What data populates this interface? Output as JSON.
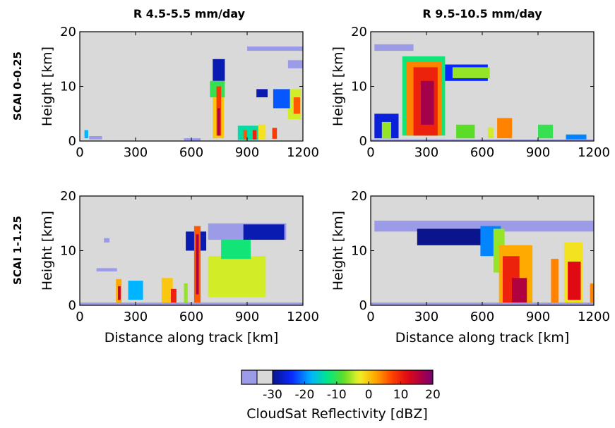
{
  "chart_data": {
    "type": "heatmap",
    "columns": [
      "R 4.5-5.5 mm/day",
      "R 9.5-10.5 mm/day"
    ],
    "rows": [
      "SCAI 0-0.25",
      "SCAI 1-1.25"
    ],
    "xlabel": "Distance along track [km]",
    "ylabel": "Height [km]",
    "xlim": [
      0,
      1200
    ],
    "ylim": [
      0,
      20
    ],
    "xticks": [
      "0",
      "300",
      "600",
      "900",
      "1200"
    ],
    "yticks": [
      "0",
      "10",
      "20"
    ],
    "background_color": "#d9d9d9",
    "colorbar": {
      "label": "CloudSat Reflectivity [dBZ]",
      "ticks": [
        "-30",
        "-20",
        "-10",
        "0",
        "10",
        "20"
      ],
      "tick_values": [
        -30,
        -20,
        -10,
        0,
        10,
        20
      ],
      "range": [
        -40,
        20
      ],
      "under_colors": [
        "#9b9be8",
        "#d9d9d9"
      ]
    },
    "panels": [
      {
        "row": 0,
        "col": 0,
        "cells": [
          {
            "x": [
              25,
              45
            ],
            "y": [
              0.5,
              2
            ],
            "dbz": -18
          },
          {
            "x": [
              50,
              120
            ],
            "y": [
              0.3,
              0.9
            ],
            "dbz": -32
          },
          {
            "x": [
              715,
              780
            ],
            "y": [
              11,
              15
            ],
            "dbz": -28
          },
          {
            "x": [
              700,
              780
            ],
            "y": [
              8,
              11
            ],
            "dbz": -10
          },
          {
            "x": [
              715,
              775
            ],
            "y": [
              0.5,
              8
            ],
            "dbz": 0
          },
          {
            "x": [
              735,
              760
            ],
            "y": [
              1,
              10
            ],
            "dbz": 8
          },
          {
            "x": [
              740,
              755
            ],
            "y": [
              1,
              6
            ],
            "dbz": 16
          },
          {
            "x": [
              560,
              650
            ],
            "y": [
              0.1,
              0.5
            ],
            "dbz": -32
          },
          {
            "x": [
              850,
              960
            ],
            "y": [
              0.2,
              2.8
            ],
            "dbz": -14
          },
          {
            "x": [
              880,
              900
            ],
            "y": [
              0.3,
              2
            ],
            "dbz": 6
          },
          {
            "x": [
              930,
              950
            ],
            "y": [
              0.3,
              2
            ],
            "dbz": 10
          },
          {
            "x": [
              960,
              1000
            ],
            "y": [
              0.3,
              3
            ],
            "dbz": -2
          },
          {
            "x": [
              1035,
              1060
            ],
            "y": [
              0.4,
              2.4
            ],
            "dbz": 8
          },
          {
            "x": [
              1120,
              1190
            ],
            "y": [
              4,
              9.5
            ],
            "dbz": -4
          },
          {
            "x": [
              1150,
              1185
            ],
            "y": [
              5,
              8
            ],
            "dbz": 6
          },
          {
            "x": [
              1040,
              1130
            ],
            "y": [
              6,
              9.5
            ],
            "dbz": -22
          },
          {
            "x": [
              950,
              1010
            ],
            "y": [
              8,
              9.5
            ],
            "dbz": -28
          },
          {
            "x": [
              900,
              1200
            ],
            "y": [
              16.5,
              17.3
            ],
            "dbz": -37
          },
          {
            "x": [
              1120,
              1200
            ],
            "y": [
              13.3,
              14.8
            ],
            "dbz": -37
          }
        ]
      },
      {
        "row": 0,
        "col": 1,
        "cells": [
          {
            "x": [
              20,
              230
            ],
            "y": [
              16.5,
              17.7
            ],
            "dbz": -37
          },
          {
            "x": [
              200,
              630
            ],
            "y": [
              11,
              14
            ],
            "dbz": -24
          },
          {
            "x": [
              440,
              640
            ],
            "y": [
              11.5,
              13.5
            ],
            "dbz": -6
          },
          {
            "x": [
              170,
              400
            ],
            "y": [
              1,
              15.5
            ],
            "dbz": -12
          },
          {
            "x": [
              190,
              380
            ],
            "y": [
              1,
              14.5
            ],
            "dbz": 4
          },
          {
            "x": [
              230,
              360
            ],
            "y": [
              1,
              13.5
            ],
            "dbz": 10
          },
          {
            "x": [
              270,
              340
            ],
            "y": [
              3,
              11
            ],
            "dbz": 17
          },
          {
            "x": [
              20,
              150
            ],
            "y": [
              0.5,
              5
            ],
            "dbz": -26
          },
          {
            "x": [
              60,
              110
            ],
            "y": [
              0.5,
              3.5
            ],
            "dbz": -6
          },
          {
            "x": [
              460,
              560
            ],
            "y": [
              0.5,
              3
            ],
            "dbz": -8
          },
          {
            "x": [
              680,
              760
            ],
            "y": [
              0.5,
              4.2
            ],
            "dbz": 4
          },
          {
            "x": [
              630,
              660
            ],
            "y": [
              0.5,
              2.5
            ],
            "dbz": -4
          },
          {
            "x": [
              900,
              980
            ],
            "y": [
              0.5,
              3
            ],
            "dbz": -10
          },
          {
            "x": [
              1050,
              1160
            ],
            "y": [
              0.3,
              1.2
            ],
            "dbz": -20
          },
          {
            "x": [
              0,
              1200
            ],
            "y": [
              0,
              0.3
            ],
            "dbz": -34
          }
        ]
      },
      {
        "row": 1,
        "col": 0,
        "cells": [
          {
            "x": [
              130,
              160
            ],
            "y": [
              11.5,
              12.3
            ],
            "dbz": -37
          },
          {
            "x": [
              90,
              200
            ],
            "y": [
              6.2,
              6.8
            ],
            "dbz": -37
          },
          {
            "x": [
              195,
              225
            ],
            "y": [
              0.5,
              4.8
            ],
            "dbz": 2
          },
          {
            "x": [
              205,
              220
            ],
            "y": [
              1,
              3.5
            ],
            "dbz": 14
          },
          {
            "x": [
              260,
              340
            ],
            "y": [
              1,
              4.5
            ],
            "dbz": -18
          },
          {
            "x": [
              440,
              500
            ],
            "y": [
              0.5,
              5
            ],
            "dbz": 0
          },
          {
            "x": [
              490,
              520
            ],
            "y": [
              0.5,
              3
            ],
            "dbz": 10
          },
          {
            "x": [
              570,
              680
            ],
            "y": [
              10,
              13.5
            ],
            "dbz": -28
          },
          {
            "x": [
              615,
              650
            ],
            "y": [
              0.5,
              14.5
            ],
            "dbz": 6
          },
          {
            "x": [
              625,
              640
            ],
            "y": [
              2,
              13
            ],
            "dbz": 16
          },
          {
            "x": [
              560,
              580
            ],
            "y": [
              0.5,
              4
            ],
            "dbz": -6
          },
          {
            "x": [
              690,
              1000
            ],
            "y": [
              1.5,
              9
            ],
            "dbz": -4
          },
          {
            "x": [
              760,
              920
            ],
            "y": [
              8.5,
              12
            ],
            "dbz": -12
          },
          {
            "x": [
              690,
              1110
            ],
            "y": [
              12,
              15
            ],
            "dbz": -37
          },
          {
            "x": [
              880,
              1100
            ],
            "y": [
              12,
              14.8
            ],
            "dbz": -28
          },
          {
            "x": [
              0,
              1200
            ],
            "y": [
              0,
              0.5
            ],
            "dbz": -34
          }
        ]
      },
      {
        "row": 1,
        "col": 1,
        "cells": [
          {
            "x": [
              20,
              1200
            ],
            "y": [
              13.5,
              15.5
            ],
            "dbz": -37
          },
          {
            "x": [
              250,
              700
            ],
            "y": [
              11,
              14
            ],
            "dbz": -30
          },
          {
            "x": [
              590,
              700
            ],
            "y": [
              9,
              14.5
            ],
            "dbz": -20
          },
          {
            "x": [
              660,
              720
            ],
            "y": [
              6,
              14
            ],
            "dbz": -6
          },
          {
            "x": [
              690,
              870
            ],
            "y": [
              0.5,
              11
            ],
            "dbz": 2
          },
          {
            "x": [
              710,
              800
            ],
            "y": [
              0.5,
              9
            ],
            "dbz": 10
          },
          {
            "x": [
              760,
              840
            ],
            "y": [
              0.5,
              5
            ],
            "dbz": 16
          },
          {
            "x": [
              970,
              1010
            ],
            "y": [
              0.5,
              8.5
            ],
            "dbz": 4
          },
          {
            "x": [
              1040,
              1140
            ],
            "y": [
              0.5,
              11.5
            ],
            "dbz": -2
          },
          {
            "x": [
              1060,
              1130
            ],
            "y": [
              1,
              8
            ],
            "dbz": 12
          },
          {
            "x": [
              1180,
              1200
            ],
            "y": [
              0.5,
              4
            ],
            "dbz": 4
          },
          {
            "x": [
              0,
              1200
            ],
            "y": [
              0,
              0.5
            ],
            "dbz": -32
          }
        ]
      }
    ]
  }
}
